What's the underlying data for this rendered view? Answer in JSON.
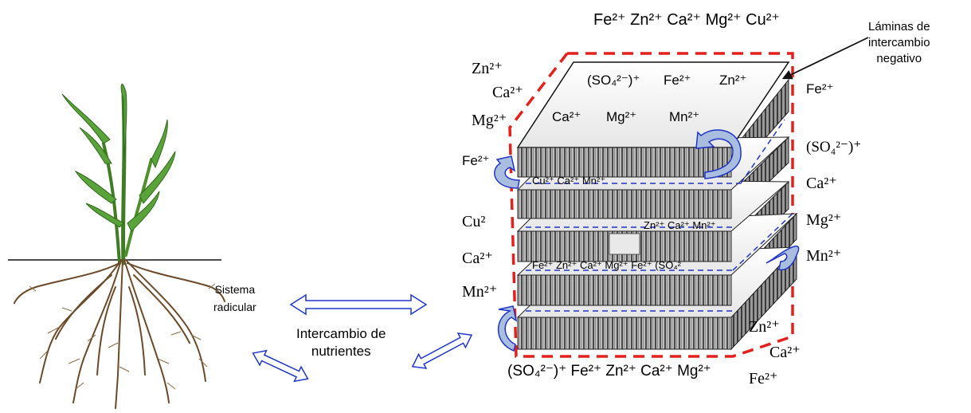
{
  "colors": {
    "boundary": "#e3201b",
    "arrows": "#1f35c8",
    "curl_fill": "#a9bede",
    "stem": "#4a8a2a",
    "root": "#6b4a2a"
  },
  "icons": [
    "plant-with-roots",
    "layered-clay-block",
    "double-arrow",
    "curved-arrow"
  ],
  "labels": {
    "sistema": "Sistema\nradicular",
    "intercambio": "Intercambio de\nnutrientes",
    "laminas": "Láminas de\nintercambio\nnegativo"
  },
  "ions": {
    "top_row": "Fe²⁺ Zn²⁺ Ca²⁺ Mg²⁺ Cu²⁺",
    "left_top": [
      "Zn²⁺",
      "Ca²⁺",
      "Mg²⁺"
    ],
    "left_fe": "Fe²⁺",
    "left_mid": [
      "Cu²",
      "Ca²⁺",
      "Mn²⁺"
    ],
    "right_fe": "Fe²⁺",
    "right_list": [
      "(SO₄²⁻)⁺",
      "Ca²⁺",
      "Mg²⁺",
      "Mn²⁺"
    ],
    "bottom_right": [
      "Zn²⁺",
      "Ca²⁺",
      "Fe²⁺"
    ],
    "bottom_row": "(SO₄²⁻)⁺ Fe²⁺  Zn²⁺ Ca²⁺ Mg²⁺",
    "top_face_1": "(SO₄²⁻)⁺",
    "top_face_2": "Fe²⁺",
    "top_face_3": "Zn²⁺",
    "top_face_4": "Ca²⁺",
    "top_face_5": "Mg²⁺",
    "top_face_6": "Mn²⁺",
    "gap_1": "Cu²⁺ Ca²⁺ Mn²⁺",
    "gap_2": "Zn²⁺ Ca²⁺ Mn²⁺",
    "gap_3": "Fe²⁺ Zn²⁺ Ca²⁺ Mg²⁺  Fe²⁺ (SO₄²"
  }
}
